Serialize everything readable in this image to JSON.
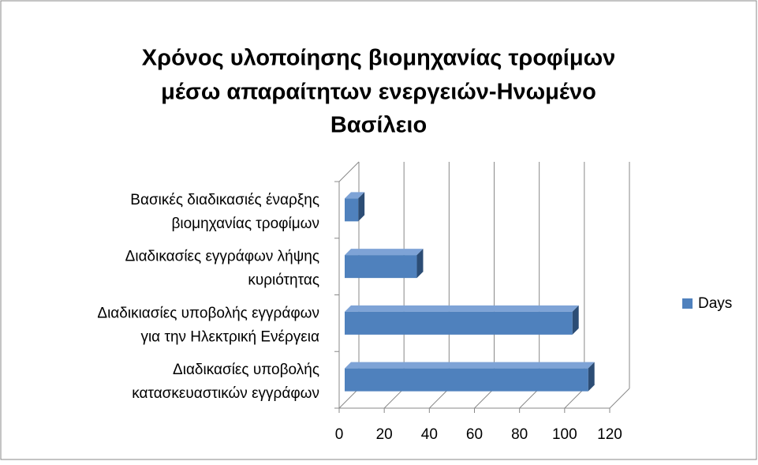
{
  "chart_data": {
    "type": "bar3d",
    "title": [
      "Χρόνος υλοποίησης βιομηχανίας τροφίμων",
      "μέσω απαραίτητων ενεργειών-Ηνωμένο",
      "Βασίλειο"
    ],
    "categories": [
      [
        "Βασικές διαδικασιές έναρξης",
        "βιομηχανίας τροφίμων"
      ],
      [
        "Διαδικασίες εγγράφων λήψης",
        "κυριότητας"
      ],
      [
        "Διαδικιασίες υποβολής εγγράφων",
        "για την Ηλεκτρική Ενέργεια"
      ],
      [
        "Διαδικασίες υποβολής",
        "κατασκευαστικών εγγράφων"
      ]
    ],
    "series": [
      {
        "name": "Days",
        "color": "#4f81bd",
        "values": [
          6,
          32,
          101,
          108
        ]
      }
    ],
    "xlim": [
      0,
      120
    ],
    "xticks": [
      0,
      20,
      40,
      60,
      80,
      100,
      120
    ],
    "grid": true,
    "legend": "right"
  }
}
